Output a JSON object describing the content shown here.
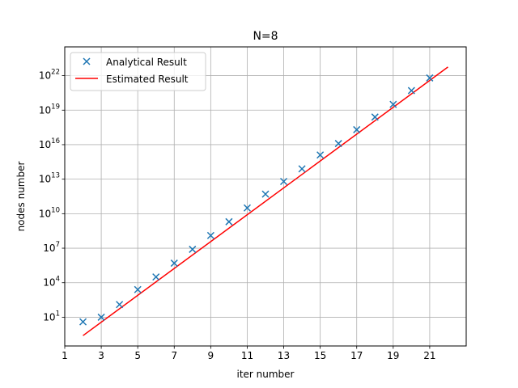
{
  "chart_data": {
    "type": "line",
    "title": "N=8",
    "xlabel": "iter number",
    "ylabel": "nodes number",
    "yscale": "log",
    "grid": true,
    "legend_position": "upper-left",
    "xlim": [
      1,
      23
    ],
    "ylim_exp": [
      -1.5,
      24.5
    ],
    "x_ticks": [
      {
        "value": 1,
        "label": "1"
      },
      {
        "value": 3,
        "label": "3"
      },
      {
        "value": 5,
        "label": "5"
      },
      {
        "value": 7,
        "label": "7"
      },
      {
        "value": 9,
        "label": "9"
      },
      {
        "value": 11,
        "label": "11"
      },
      {
        "value": 13,
        "label": "13"
      },
      {
        "value": 15,
        "label": "15"
      },
      {
        "value": 17,
        "label": "17"
      },
      {
        "value": 19,
        "label": "19"
      },
      {
        "value": 21,
        "label": "21"
      }
    ],
    "y_ticks": [
      {
        "exp": 1,
        "base": "10",
        "sup": "1"
      },
      {
        "exp": 4,
        "base": "10",
        "sup": "4"
      },
      {
        "exp": 7,
        "base": "10",
        "sup": "7"
      },
      {
        "exp": 10,
        "base": "10",
        "sup": "10"
      },
      {
        "exp": 13,
        "base": "10",
        "sup": "13"
      },
      {
        "exp": 16,
        "base": "10",
        "sup": "16"
      },
      {
        "exp": 19,
        "base": "10",
        "sup": "19"
      },
      {
        "exp": 22,
        "base": "10",
        "sup": "22"
      }
    ],
    "series": [
      {
        "name": "Analytical Result",
        "kind": "scatter",
        "marker": "x",
        "color": "#1f77b4",
        "x": [
          2,
          3,
          4,
          5,
          6,
          7,
          8,
          9,
          10,
          11,
          12,
          13,
          14,
          15,
          16,
          17,
          18,
          19,
          20,
          21
        ],
        "y_exp": [
          0.6,
          1.0,
          2.1,
          3.4,
          4.5,
          5.7,
          6.9,
          8.1,
          9.3,
          10.5,
          11.7,
          12.8,
          13.9,
          15.1,
          16.1,
          17.3,
          18.4,
          19.5,
          20.7,
          21.8
        ]
      },
      {
        "name": "Estimated Result",
        "kind": "line",
        "color": "#ff0000",
        "x": [
          2,
          22
        ],
        "y_exp": [
          -0.6,
          22.75
        ]
      }
    ]
  }
}
